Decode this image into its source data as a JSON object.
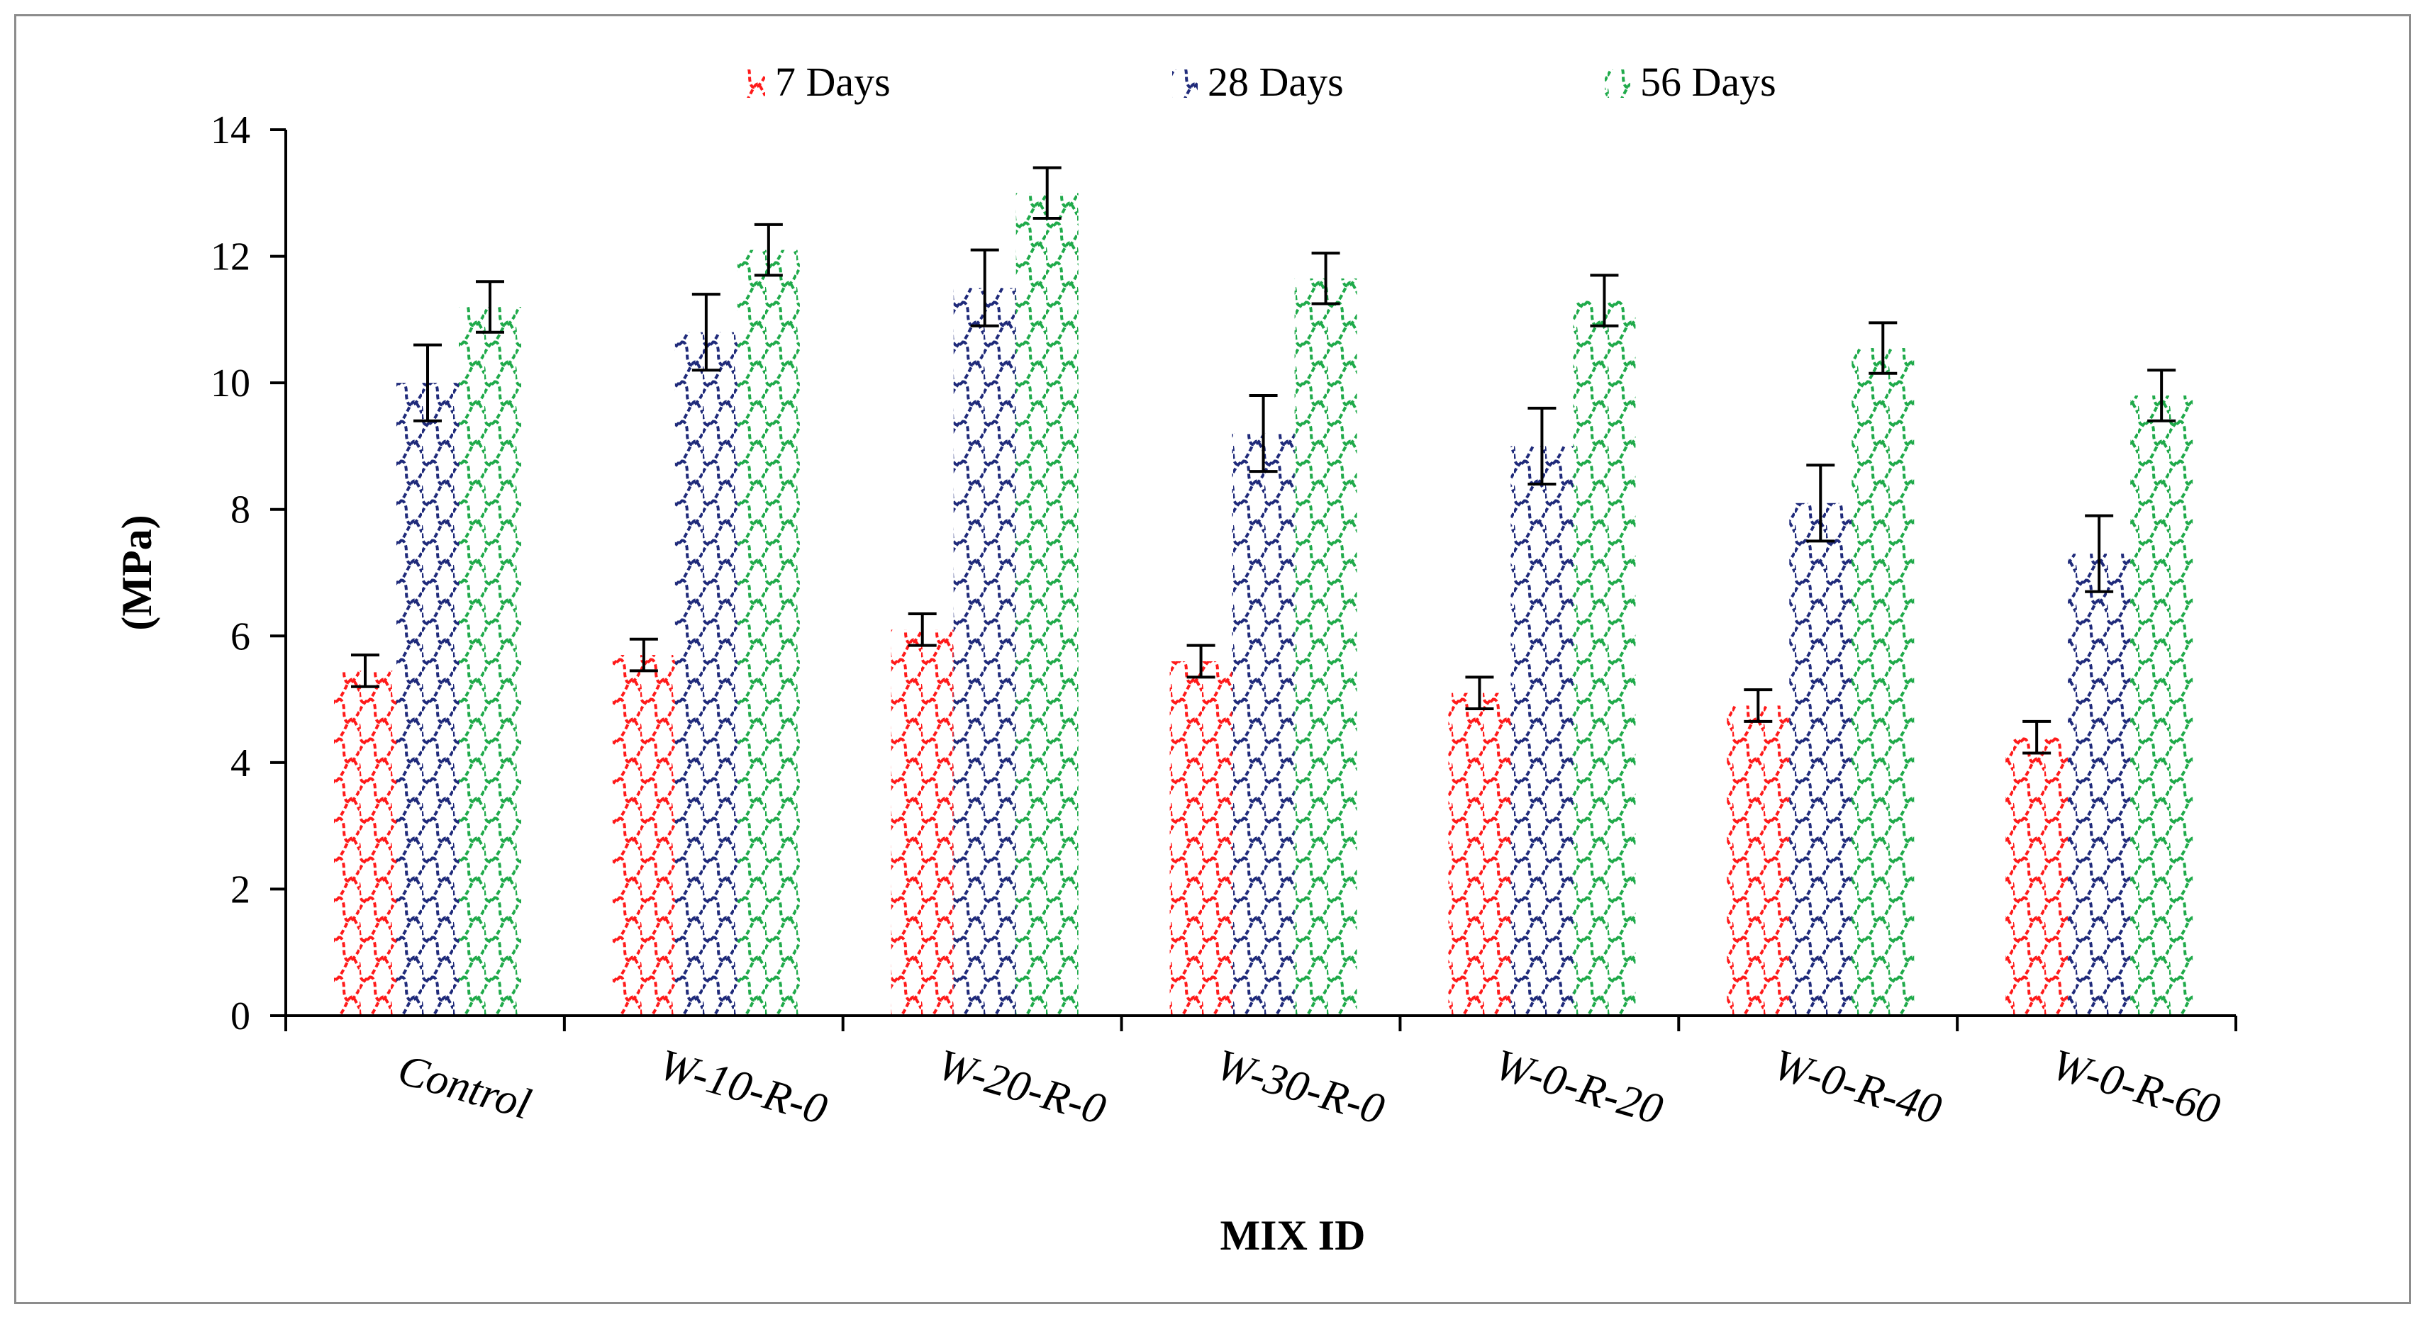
{
  "chart_data": {
    "type": "bar",
    "title": "",
    "xlabel": "MIX ID",
    "ylabel": "(MPa)",
    "ylim": [
      0,
      14
    ],
    "yticks": [
      0,
      2,
      4,
      6,
      8,
      10,
      12,
      14
    ],
    "ytick_labels": [
      "0",
      "2",
      "4",
      "6",
      "8",
      "10",
      "12",
      "14"
    ],
    "grid": false,
    "legend_position": "top",
    "categories": [
      "Control",
      "W-10-R-0",
      "W-20-R-0",
      "W-30-R-0",
      "W-0-R-20",
      "W-0-R-40",
      "W-0-R-60"
    ],
    "series": [
      {
        "name": "7 Days",
        "color": "#ff1a1a",
        "values": [
          5.45,
          5.7,
          6.1,
          5.6,
          5.1,
          4.9,
          4.4
        ],
        "errors": [
          0.25,
          0.25,
          0.25,
          0.25,
          0.25,
          0.25,
          0.25
        ]
      },
      {
        "name": "28 Days",
        "color": "#1f2a7a",
        "values": [
          10.0,
          10.8,
          11.5,
          9.2,
          9.0,
          8.1,
          7.3
        ],
        "errors": [
          0.6,
          0.6,
          0.6,
          0.6,
          0.6,
          0.6,
          0.6
        ]
      },
      {
        "name": "56 Days",
        "color": "#1faa4a",
        "values": [
          11.2,
          12.1,
          13.0,
          11.65,
          11.3,
          10.55,
          9.8
        ],
        "errors": [
          0.4,
          0.4,
          0.4,
          0.4,
          0.4,
          0.4,
          0.4
        ]
      }
    ]
  }
}
